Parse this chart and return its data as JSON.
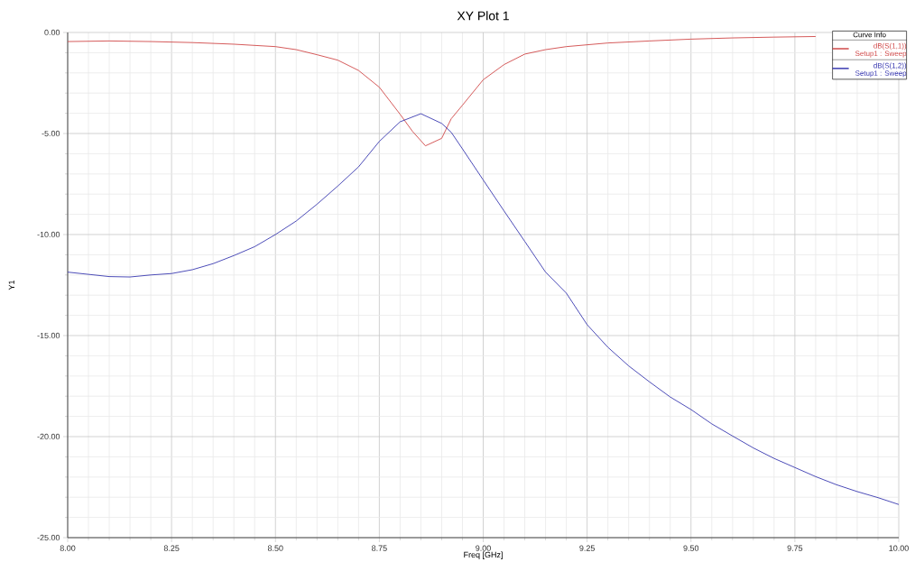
{
  "chart_data": {
    "type": "line",
    "title": "XY Plot 1",
    "xlabel": "Freq [GHz]",
    "ylabel": "Y1",
    "legend_title": "Curve Info",
    "x": [
      8.0,
      8.1,
      8.2,
      8.3,
      8.4,
      8.5,
      8.55,
      8.6,
      8.65,
      8.7,
      8.75,
      8.8,
      8.83,
      8.861,
      8.9,
      8.923,
      8.95,
      9.0,
      9.05,
      9.1,
      9.15,
      9.2,
      9.3,
      9.4,
      9.5,
      9.6,
      9.7,
      9.8
    ],
    "xlim": [
      8,
      10
    ],
    "ylim": [
      -25,
      0
    ],
    "xticks": [
      {
        "value": 8,
        "label": "8.00"
      },
      {
        "value": 8.25,
        "label": "8.25"
      },
      {
        "value": 8.5,
        "label": "8.50"
      },
      {
        "value": 8.75,
        "label": "8.75"
      },
      {
        "value": 9,
        "label": "9.00"
      },
      {
        "value": 9.25,
        "label": "9.25"
      },
      {
        "value": 9.5,
        "label": "9.50"
      },
      {
        "value": 9.75,
        "label": "9.75"
      },
      {
        "value": 10,
        "label": "10.00"
      }
    ],
    "yticks": [
      {
        "value": -25,
        "label": "-25.00"
      },
      {
        "value": -20,
        "label": "-20.00"
      },
      {
        "value": -15,
        "label": "-15.00"
      },
      {
        "value": -10,
        "label": "-10.00"
      },
      {
        "value": -5,
        "label": "-5.00"
      },
      {
        "value": 0,
        "label": "0.00"
      }
    ],
    "grid": true,
    "legend": "top right",
    "series": [
      {
        "name": "dB(S(1,1)) Setup1 : Sweep",
        "color": "#d04848",
        "values": [
          -0.45,
          -0.42,
          -0.45,
          -0.5,
          -0.58,
          -0.7,
          -0.85,
          -1.1,
          -1.37,
          -1.88,
          -2.71,
          -4.05,
          -4.9,
          -5.61,
          -5.24,
          -4.27,
          -3.6,
          -2.34,
          -1.59,
          -1.07,
          -0.85,
          -0.7,
          -0.52,
          -0.42,
          -0.33,
          -0.27,
          -0.23,
          -0.2
        ]
      },
      {
        "name": "dB(S(1,2)) Setup1 : Sweep",
        "color": "#3838b0",
        "x": [
          8.0,
          8.1,
          8.15,
          8.2,
          8.25,
          8.3,
          8.35,
          8.4,
          8.45,
          8.5,
          8.55,
          8.6,
          8.65,
          8.7,
          8.75,
          8.8,
          8.85,
          8.9,
          8.923,
          8.95,
          9.0,
          9.05,
          9.1,
          9.15,
          9.2,
          9.25,
          9.3,
          9.35,
          9.4,
          9.45,
          9.5,
          9.55,
          9.6,
          9.65,
          9.7,
          9.75,
          9.8,
          9.85,
          9.9,
          9.95,
          10.0
        ],
        "values": [
          -11.86,
          -12.08,
          -12.1,
          -12.0,
          -11.93,
          -11.74,
          -11.44,
          -11.04,
          -10.6,
          -10.0,
          -9.33,
          -8.5,
          -7.6,
          -6.65,
          -5.39,
          -4.42,
          -4.02,
          -4.5,
          -4.94,
          -5.76,
          -7.3,
          -8.83,
          -10.34,
          -11.86,
          -12.9,
          -14.46,
          -15.58,
          -16.5,
          -17.29,
          -18.04,
          -18.66,
          -19.37,
          -19.97,
          -20.56,
          -21.08,
          -21.53,
          -21.98,
          -22.38,
          -22.72,
          -23.02,
          -23.36
        ]
      }
    ]
  }
}
